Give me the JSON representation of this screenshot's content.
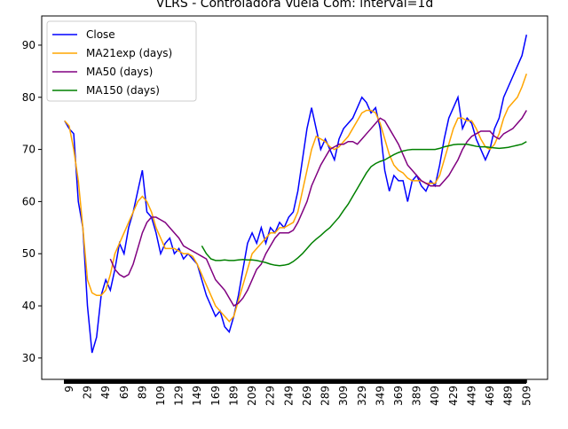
{
  "chart_data": {
    "type": "line",
    "title": "VLRS - Controladora Vuela Com: interval=1d",
    "x": [
      4,
      9,
      14,
      19,
      24,
      29,
      34,
      39,
      44,
      49,
      54,
      59,
      64,
      69,
      74,
      79,
      84,
      89,
      94,
      99,
      104,
      109,
      114,
      119,
      124,
      129,
      134,
      139,
      144,
      149,
      154,
      159,
      164,
      169,
      174,
      179,
      184,
      189,
      194,
      199,
      204,
      209,
      214,
      219,
      224,
      229,
      234,
      239,
      244,
      249,
      254,
      259,
      264,
      269,
      274,
      279,
      284,
      289,
      294,
      299,
      304,
      309,
      314,
      319,
      324,
      329,
      334,
      339,
      344,
      349,
      354,
      359,
      364,
      369,
      374,
      379,
      384,
      389,
      394,
      399,
      404,
      409,
      414,
      419,
      424,
      429,
      434,
      439,
      444,
      449,
      454,
      459,
      464,
      469,
      474,
      479,
      484,
      489,
      494,
      499,
      504,
      509
    ],
    "series": [
      {
        "name": "Close",
        "color": "#0000ff",
        "values": [
          75.5,
          74,
          73,
          60,
          55,
          40,
          31,
          34,
          42,
          45,
          43,
          47,
          52,
          50,
          55,
          58,
          62,
          66,
          58,
          57,
          54,
          50,
          52,
          53,
          50,
          51,
          49,
          50,
          49,
          48,
          45,
          42,
          40,
          38,
          39,
          36,
          35,
          38,
          42,
          47,
          52,
          54,
          52,
          55,
          52,
          55,
          54,
          56,
          55,
          57,
          58,
          62,
          68,
          74,
          78,
          74,
          70,
          72,
          70,
          68,
          72,
          74,
          75,
          76,
          78,
          80,
          79,
          77,
          78,
          74,
          66,
          62,
          65,
          64,
          64,
          60,
          64,
          65,
          63,
          62,
          64,
          63,
          67,
          72,
          76,
          78,
          80,
          74,
          76,
          75,
          72,
          70,
          68,
          70,
          74,
          76,
          80,
          82,
          84,
          86,
          88,
          92
        ]
      },
      {
        "name": "MA21exp (days)",
        "color": "#ffa500",
        "values": [
          75.5,
          74.5,
          70,
          64,
          55,
          45,
          42.5,
          42,
          42,
          43,
          46,
          50,
          52,
          54,
          56,
          58,
          60,
          61,
          60,
          58,
          55,
          53,
          51,
          51,
          51,
          50.5,
          50,
          50,
          49.5,
          48,
          46,
          44,
          42,
          40,
          39,
          38,
          37,
          38,
          41,
          44,
          47,
          50,
          51,
          52,
          53,
          54,
          54,
          55,
          55,
          55.5,
          56,
          58,
          62,
          66,
          70,
          72.5,
          72,
          71.5,
          70.5,
          70,
          70.5,
          71.5,
          72.5,
          74,
          75.5,
          77,
          77.5,
          77.5,
          77,
          75,
          72,
          69,
          67,
          66,
          65.5,
          64.5,
          64,
          64,
          64,
          63.5,
          63.5,
          63.5,
          65,
          68,
          71,
          74,
          76,
          76,
          75.5,
          75.5,
          74,
          72,
          70.5,
          70,
          71,
          73,
          76,
          78,
          79,
          80,
          82,
          84.5
        ]
      },
      {
        "name": "MA50 (days)",
        "color": "#800080",
        "values": [
          null,
          null,
          null,
          null,
          null,
          null,
          null,
          null,
          null,
          null,
          49,
          47,
          46,
          45.5,
          46,
          48,
          51,
          54,
          56,
          57,
          57,
          56.5,
          56,
          55,
          54,
          53,
          51.5,
          51,
          50.5,
          50,
          49.5,
          49,
          47,
          45,
          44,
          43,
          41.5,
          40,
          40.5,
          41.5,
          43,
          45,
          47,
          48,
          50,
          51.5,
          53,
          54,
          54,
          54,
          54.5,
          56,
          58,
          60,
          63,
          65,
          67,
          68.5,
          70,
          70.5,
          71,
          71,
          71.5,
          71.5,
          71,
          72,
          73,
          74,
          75,
          76,
          75.5,
          74,
          72.5,
          71,
          69,
          67,
          66,
          65,
          64,
          63.5,
          63,
          63,
          63,
          64,
          65,
          66.5,
          68,
          70,
          71.5,
          72.5,
          73,
          73.5,
          73.5,
          73.5,
          72.5,
          72,
          73,
          73.5,
          74,
          75,
          76,
          77.5
        ]
      },
      {
        "name": "MA150 (days)",
        "color": "#008000",
        "values": [
          null,
          null,
          null,
          null,
          null,
          null,
          null,
          null,
          null,
          null,
          null,
          null,
          null,
          null,
          null,
          null,
          null,
          null,
          null,
          null,
          null,
          null,
          null,
          null,
          null,
          null,
          null,
          null,
          null,
          null,
          51.5,
          50,
          49,
          48.7,
          48.7,
          48.8,
          48.7,
          48.7,
          48.8,
          48.9,
          48.8,
          48.8,
          48.7,
          48.5,
          48.3,
          48,
          47.8,
          47.7,
          47.8,
          48,
          48.5,
          49.2,
          50,
          51,
          52,
          52.8,
          53.5,
          54.3,
          55,
          56,
          57,
          58.3,
          59.5,
          61,
          62.5,
          64,
          65.5,
          66.7,
          67.3,
          67.7,
          68,
          68.5,
          69,
          69.4,
          69.7,
          69.9,
          70,
          70,
          70,
          70,
          70,
          70,
          70.2,
          70.5,
          70.7,
          70.9,
          71,
          71,
          71,
          70.8,
          70.6,
          70.5,
          70.5,
          70.4,
          70.3,
          70.2,
          70.3,
          70.4,
          70.6,
          70.8,
          71,
          71.5
        ]
      }
    ],
    "xlim": [
      -21,
      532
    ],
    "ylim": [
      25.9,
      95.6
    ],
    "xticks": [
      9,
      29,
      49,
      69,
      89,
      109,
      129,
      149,
      169,
      189,
      209,
      229,
      249,
      269,
      289,
      309,
      329,
      349,
      369,
      389,
      409,
      429,
      449,
      469,
      489,
      509
    ],
    "yticks": [
      30,
      40,
      50,
      60,
      70,
      80,
      90
    ],
    "legend": "upper left"
  }
}
